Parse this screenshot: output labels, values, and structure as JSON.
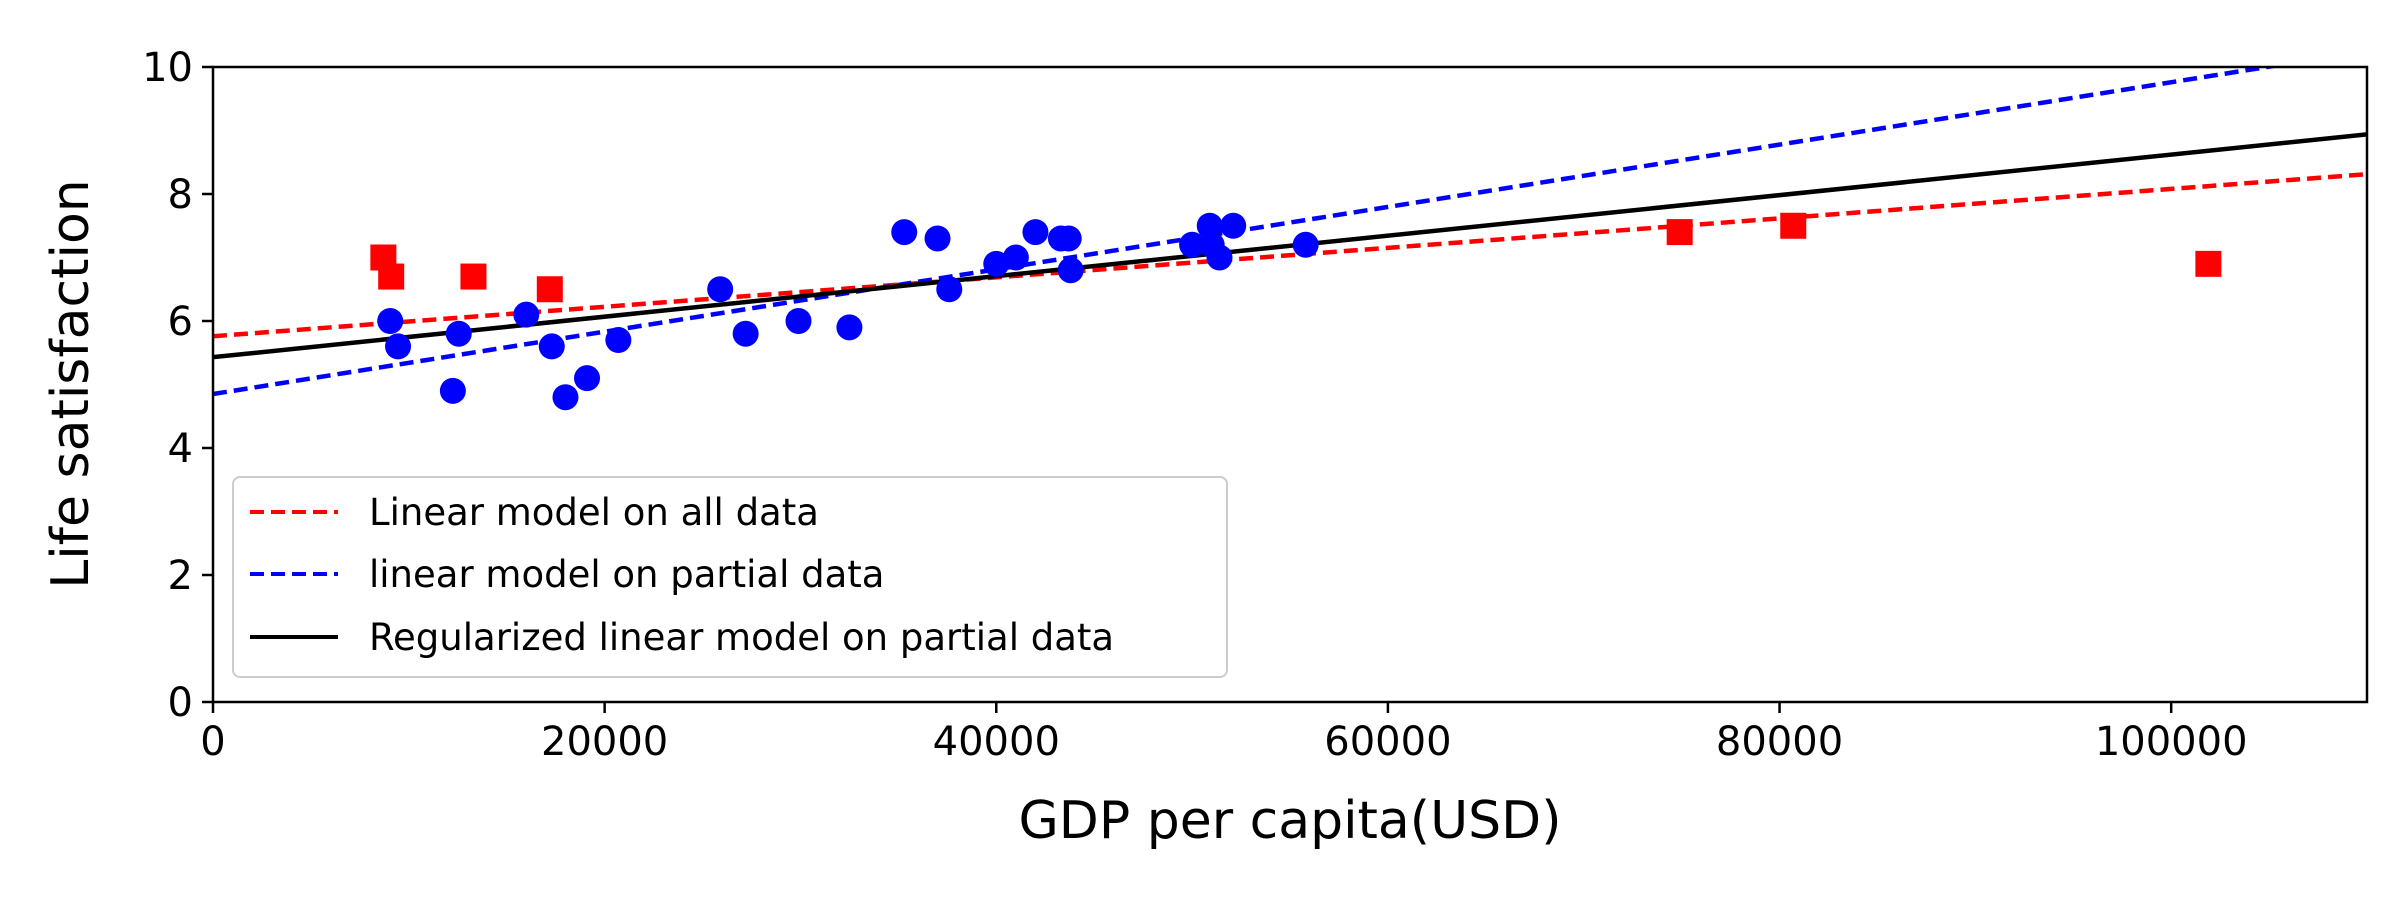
{
  "chart_data": {
    "type": "scatter",
    "title": "",
    "xlabel": "GDP per capita(USD)",
    "ylabel": "Life satisfaction",
    "xlim": [
      0,
      110000
    ],
    "ylim": [
      0,
      10
    ],
    "xticks": [
      0,
      20000,
      40000,
      60000,
      80000,
      100000
    ],
    "xtick_labels": [
      "0",
      "20000",
      "40000",
      "60000",
      "80000",
      "100000"
    ],
    "yticks": [
      0,
      2,
      4,
      6,
      8,
      10
    ],
    "ytick_labels": [
      "0",
      "2",
      "4",
      "6",
      "8",
      "10"
    ],
    "grid": false,
    "legend_position": "lower-left",
    "series": [
      {
        "marker": "circle",
        "color": "#0000ff",
        "points": [
          [
            9050,
            6.0
          ],
          [
            9450,
            5.6
          ],
          [
            12250,
            4.9
          ],
          [
            12550,
            5.8
          ],
          [
            16000,
            6.1
          ],
          [
            17300,
            5.6
          ],
          [
            18000,
            4.8
          ],
          [
            19100,
            5.1
          ],
          [
            20700,
            5.7
          ],
          [
            25900,
            6.5
          ],
          [
            27200,
            5.8
          ],
          [
            29900,
            6.0
          ],
          [
            32500,
            5.9
          ],
          [
            35300,
            7.4
          ],
          [
            37000,
            7.3
          ],
          [
            37600,
            6.5
          ],
          [
            40000,
            6.9
          ],
          [
            41000,
            7.0
          ],
          [
            42000,
            7.4
          ],
          [
            43300,
            7.3
          ],
          [
            43700,
            7.3
          ],
          [
            43800,
            6.8
          ],
          [
            50000,
            7.2
          ],
          [
            50900,
            7.5
          ],
          [
            51000,
            7.2
          ],
          [
            51400,
            7.0
          ],
          [
            52100,
            7.5
          ],
          [
            55800,
            7.2
          ]
        ]
      },
      {
        "marker": "square",
        "color": "#ff0000",
        "points": [
          [
            8700,
            7.0
          ],
          [
            9100,
            6.7
          ],
          [
            13300,
            6.7
          ],
          [
            17200,
            6.5
          ],
          [
            74900,
            7.4
          ],
          [
            80700,
            7.5
          ],
          [
            101900,
            6.9
          ]
        ]
      }
    ],
    "lines": [
      {
        "name": "Linear model on all data",
        "style": "dashed",
        "color": "#ff0000",
        "intercept": 5.76,
        "slope": 2.32e-05
      },
      {
        "name": "linear model on partial data",
        "style": "dashed",
        "color": "#0000ff",
        "intercept": 4.85,
        "slope": 4.91e-05
      },
      {
        "name": "Regularized linear model on partial data",
        "style": "solid",
        "color": "#000000",
        "intercept": 5.43,
        "slope": 3.19e-05
      }
    ]
  }
}
